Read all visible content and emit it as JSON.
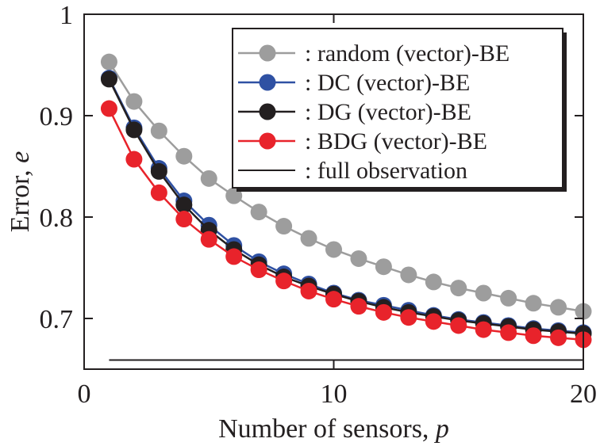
{
  "chart_data": {
    "type": "line",
    "xlabel_text": "Number of sensors, ",
    "xlabel_var": "p",
    "ylabel_text": "Error, ",
    "ylabel_var": "e",
    "xlim": [
      0,
      20
    ],
    "ylim": [
      0.65,
      1.0
    ],
    "xticks": [
      0,
      10,
      20
    ],
    "xtick_labels": [
      "0",
      "10",
      "20"
    ],
    "yticks": [
      0.7,
      0.8,
      0.9,
      1.0
    ],
    "ytick_labels": [
      "0.7",
      "0.8",
      "0.9",
      "1"
    ],
    "grid": false,
    "legend_position": "top-right",
    "x": [
      1,
      2,
      3,
      4,
      5,
      6,
      7,
      8,
      9,
      10,
      11,
      12,
      13,
      14,
      15,
      16,
      17,
      18,
      19,
      20
    ],
    "series": [
      {
        "name": ": random (vector)-BE",
        "color": "#9d9d9d",
        "marker": true,
        "values": [
          0.953,
          0.914,
          0.885,
          0.86,
          0.838,
          0.821,
          0.805,
          0.791,
          0.779,
          0.768,
          0.759,
          0.751,
          0.743,
          0.736,
          0.73,
          0.725,
          0.72,
          0.715,
          0.711,
          0.707
        ]
      },
      {
        "name": ": DC (vector)-BE",
        "color": "#2f51a3",
        "marker": true,
        "values": [
          0.937,
          0.888,
          0.848,
          0.816,
          0.792,
          0.772,
          0.756,
          0.744,
          0.734,
          0.725,
          0.718,
          0.713,
          0.708,
          0.703,
          0.699,
          0.696,
          0.693,
          0.69,
          0.688,
          0.686
        ]
      },
      {
        "name": ": DG (vector)-BE",
        "color": "#231f20",
        "marker": true,
        "values": [
          0.936,
          0.886,
          0.845,
          0.812,
          0.787,
          0.768,
          0.753,
          0.741,
          0.732,
          0.724,
          0.717,
          0.711,
          0.706,
          0.702,
          0.698,
          0.695,
          0.692,
          0.689,
          0.687,
          0.685
        ]
      },
      {
        "name": ": BDG (vector)-BE",
        "color": "#e8232b",
        "marker": true,
        "values": [
          0.907,
          0.857,
          0.824,
          0.798,
          0.778,
          0.761,
          0.748,
          0.737,
          0.727,
          0.719,
          0.712,
          0.706,
          0.701,
          0.697,
          0.693,
          0.689,
          0.686,
          0.683,
          0.681,
          0.679
        ]
      },
      {
        "name": ": full observation",
        "color": "#231f20",
        "marker": false,
        "values": [
          0.659,
          0.659,
          0.659,
          0.659,
          0.659,
          0.659,
          0.659,
          0.659,
          0.659,
          0.659,
          0.659,
          0.659,
          0.659,
          0.659,
          0.659,
          0.659,
          0.659,
          0.659,
          0.659,
          0.659
        ]
      }
    ]
  }
}
